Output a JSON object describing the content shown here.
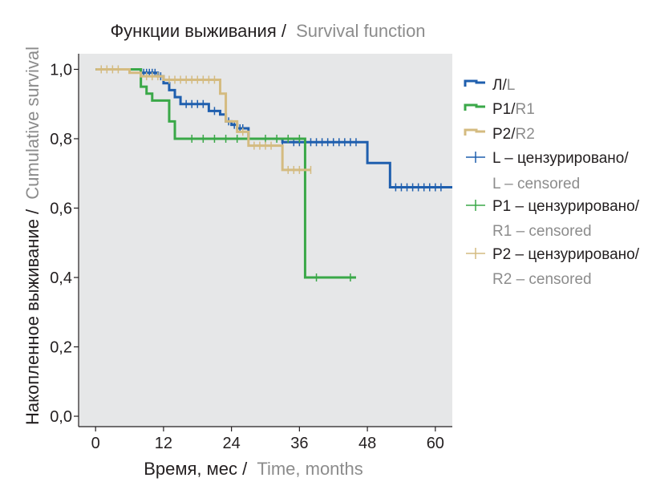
{
  "chart_data": {
    "type": "line",
    "subtype": "kaplan-meier-step",
    "title": {
      "primary": "Функции выживания /",
      "secondary": "Survival function"
    },
    "xlabel": {
      "primary": "Время, мес /",
      "secondary": "Time, months"
    },
    "ylabel": {
      "primary": "Накопленное выживание /",
      "secondary": "Cumulative survival"
    },
    "xlim": [
      -3,
      63
    ],
    "ylim": [
      -0.03,
      1.045
    ],
    "xticks": [
      0,
      12,
      24,
      36,
      48,
      60
    ],
    "xtick_labels": [
      "0",
      "12",
      "24",
      "36",
      "48",
      "60"
    ],
    "yticks": [
      0,
      0.2,
      0.4,
      0.6,
      0.8,
      1.0
    ],
    "ytick_labels": [
      "0,0",
      "0,2",
      "0,4",
      "0,6",
      "0,8",
      "1,0"
    ],
    "grid": false,
    "plot_background": "#e6e7e8",
    "legend_position": "right",
    "series": [
      {
        "name": "Л/L",
        "label_primary": "Л/",
        "label_secondary": "L",
        "color": "#1f5fae",
        "steps": [
          [
            0,
            1.0
          ],
          [
            8,
            0.99
          ],
          [
            11,
            0.98
          ],
          [
            12,
            0.96
          ],
          [
            13,
            0.94
          ],
          [
            14,
            0.92
          ],
          [
            15,
            0.9
          ],
          [
            20,
            0.88
          ],
          [
            22,
            0.87
          ],
          [
            23,
            0.85
          ],
          [
            24,
            0.84
          ],
          [
            25,
            0.83
          ],
          [
            27,
            0.8
          ],
          [
            33,
            0.79
          ],
          [
            48,
            0.73
          ],
          [
            52,
            0.66
          ],
          [
            63,
            0.66
          ]
        ],
        "censored": [
          8.5,
          9,
          9.5,
          10,
          10.5,
          11.5,
          16,
          17,
          18,
          19,
          21,
          23.5,
          24.5,
          25.5,
          26,
          33,
          35,
          36,
          38,
          39,
          40,
          41,
          42,
          43,
          44,
          45,
          46,
          53,
          54,
          55,
          56,
          57,
          58,
          59,
          60,
          61
        ]
      },
      {
        "name": "P1/R1",
        "label_primary": "P1/",
        "label_secondary": "R1",
        "color": "#3aa848",
        "steps": [
          [
            0,
            1.0
          ],
          [
            8,
            0.95
          ],
          [
            9,
            0.93
          ],
          [
            10,
            0.91
          ],
          [
            13,
            0.85
          ],
          [
            14,
            0.8
          ],
          [
            37,
            0.4
          ],
          [
            46,
            0.4
          ]
        ],
        "censored": [
          17,
          19,
          21,
          23,
          25,
          27,
          30,
          32,
          34,
          36,
          39,
          45
        ]
      },
      {
        "name": "P2/R2",
        "label_primary": "P2/",
        "label_secondary": "R2",
        "color": "#d4bb80",
        "steps": [
          [
            0,
            1.0
          ],
          [
            6,
            0.99
          ],
          [
            8,
            0.98
          ],
          [
            12,
            0.97
          ],
          [
            22,
            0.93
          ],
          [
            23,
            0.85
          ],
          [
            25,
            0.82
          ],
          [
            27,
            0.78
          ],
          [
            32,
            0.78
          ],
          [
            33,
            0.71
          ],
          [
            38,
            0.71
          ]
        ],
        "censored": [
          1,
          2,
          3,
          4,
          9,
          10,
          11,
          13,
          14,
          15,
          16,
          17,
          18,
          19,
          20,
          21,
          26,
          28,
          29,
          30,
          31,
          34,
          35,
          36,
          38
        ]
      }
    ],
    "legend": [
      {
        "kind": "line",
        "series": 0,
        "primary": "Л/",
        "secondary": "L"
      },
      {
        "kind": "line",
        "series": 1,
        "primary": "P1/",
        "secondary": "R1"
      },
      {
        "kind": "line",
        "series": 2,
        "primary": "P2/",
        "secondary": "R2"
      },
      {
        "kind": "censor",
        "series": 0,
        "primary": "L – цензурировано/",
        "secondary": "L – censored"
      },
      {
        "kind": "censor",
        "series": 1,
        "primary": "P1 – цензурировано/",
        "secondary": "R1 – censored"
      },
      {
        "kind": "censor",
        "series": 2,
        "primary": "P2 – цензурировано/",
        "secondary": "R2 – censored"
      }
    ]
  }
}
